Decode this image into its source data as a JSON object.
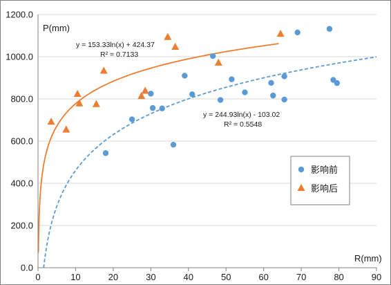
{
  "chart_data": {
    "type": "scatter",
    "title": "",
    "xlabel": "R(mm)",
    "ylabel": "P(mm)",
    "xlim": [
      0,
      90
    ],
    "ylim": [
      0,
      1200
    ],
    "xticks": [
      "0",
      "10",
      "20",
      "30",
      "40",
      "50",
      "60",
      "70",
      "80",
      "90"
    ],
    "yticks": [
      "0.0",
      "200.0",
      "400.0",
      "600.0",
      "800.0",
      "1000.0",
      "1200.0"
    ],
    "grid": "horizontal",
    "legend_position": "right",
    "series": [
      {
        "name": "影响前",
        "marker": "circle",
        "color": "#5b9bd5",
        "points": [
          [
            18,
            543
          ],
          [
            25,
            703
          ],
          [
            30,
            825
          ],
          [
            30.5,
            757
          ],
          [
            33,
            755
          ],
          [
            36,
            583
          ],
          [
            39,
            910
          ],
          [
            41,
            822
          ],
          [
            46.5,
            1003
          ],
          [
            48.5,
            795
          ],
          [
            51.5,
            893
          ],
          [
            55,
            831
          ],
          [
            62,
            876
          ],
          [
            62.5,
            816
          ],
          [
            65.5,
            907
          ],
          [
            65.5,
            797
          ],
          [
            69,
            1115
          ],
          [
            77.5,
            1132
          ],
          [
            78.5,
            890
          ],
          [
            79.5,
            875
          ]
        ],
        "trendline": {
          "type": "log",
          "a": 244.93,
          "b": -103.02,
          "x_range": [
            1.5,
            90
          ],
          "style": "dashed",
          "equation": "y = 244.93ln(x) - 103.02",
          "r2": "R² = 0.5548"
        }
      },
      {
        "name": "影响后",
        "marker": "triangle",
        "color": "#ed7d31",
        "points": [
          [
            3.5,
            693
          ],
          [
            7.5,
            656
          ],
          [
            10.5,
            825
          ],
          [
            11,
            780
          ],
          [
            15.5,
            777
          ],
          [
            17.5,
            935
          ],
          [
            27.5,
            815
          ],
          [
            28.5,
            840
          ],
          [
            34.5,
            1095
          ],
          [
            36.5,
            1048
          ],
          [
            48,
            973
          ],
          [
            64.5,
            1110
          ]
        ],
        "trendline": {
          "type": "log",
          "a": 153.33,
          "b": 424.37,
          "x_range": [
            0.1,
            64
          ],
          "style": "solid",
          "equation": "y = 153.33ln(x) + 424.37",
          "r2": "R² = 0.7133"
        }
      }
    ]
  }
}
